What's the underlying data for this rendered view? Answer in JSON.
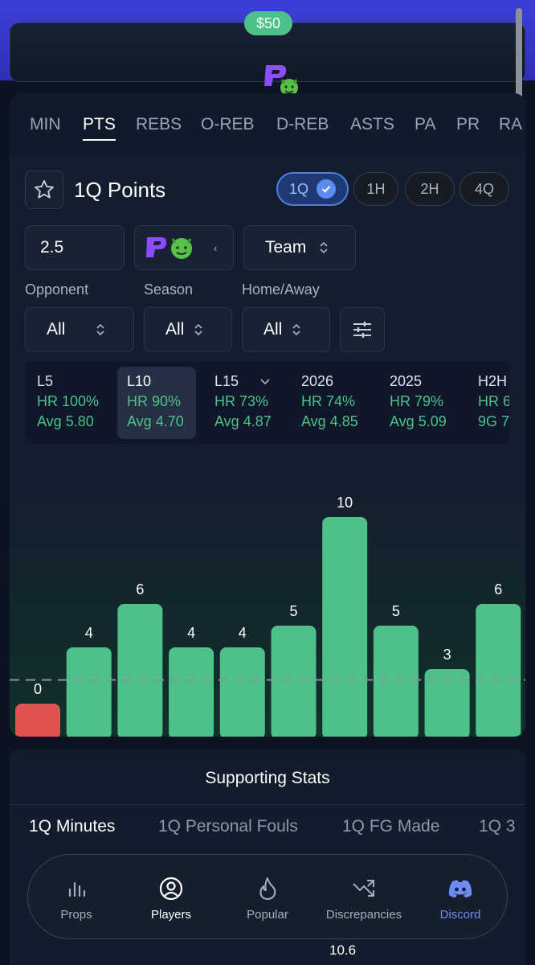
{
  "promo": {
    "amount": "$50"
  },
  "stat_tabs": [
    "MIN",
    "PTS",
    "REBS",
    "O-REB",
    "D-REB",
    "ASTS",
    "PA",
    "PR",
    "RA"
  ],
  "active_stat_tab": "PTS",
  "title": "1Q Points",
  "periods": [
    "1Q",
    "1H",
    "2H",
    "4Q"
  ],
  "active_period": "1Q",
  "line_value": "2.5",
  "team_select": "Team",
  "filters": {
    "opponent": {
      "label": "Opponent",
      "value": "All"
    },
    "season": {
      "label": "Season",
      "value": "All"
    },
    "home_away": {
      "label": "Home/Away",
      "value": "All"
    }
  },
  "hit_rates": [
    {
      "name": "L5",
      "hr": "HR 100%",
      "avg": "Avg 5.80"
    },
    {
      "name": "L10",
      "hr": "HR 90%",
      "avg": "Avg 4.70"
    },
    {
      "name": "L15",
      "hr": "HR 73%",
      "avg": "Avg 4.87"
    },
    {
      "name": "2026",
      "hr": "HR 74%",
      "avg": "Avg 4.85"
    },
    {
      "name": "2025",
      "hr": "HR 79%",
      "avg": "Avg 5.09"
    },
    {
      "name": "H2H",
      "hr": "HR 6",
      "avg": "9G 7."
    }
  ],
  "chart_data": {
    "type": "bar",
    "values": [
      0,
      4,
      6,
      4,
      4,
      5,
      10,
      5,
      3,
      6
    ],
    "threshold": 2.5,
    "colors": {
      "over": "#4cc28a",
      "under": "#e2524f"
    }
  },
  "supporting": {
    "title": "Supporting Stats",
    "tabs": [
      "1Q Minutes",
      "1Q Personal Fouls",
      "1Q FG Made",
      "1Q 3"
    ],
    "active_tab": "1Q Minutes",
    "bottom_value": "10.6"
  },
  "nav": {
    "items": [
      {
        "label": "Props",
        "icon": "bar-chart-icon"
      },
      {
        "label": "Players",
        "icon": "user-circle-icon"
      },
      {
        "label": "Popular",
        "icon": "flame-icon"
      },
      {
        "label": "Discrepancies",
        "icon": "trend-arrows-icon"
      },
      {
        "label": "Discord",
        "icon": "discord-icon"
      }
    ],
    "active": "Players"
  }
}
